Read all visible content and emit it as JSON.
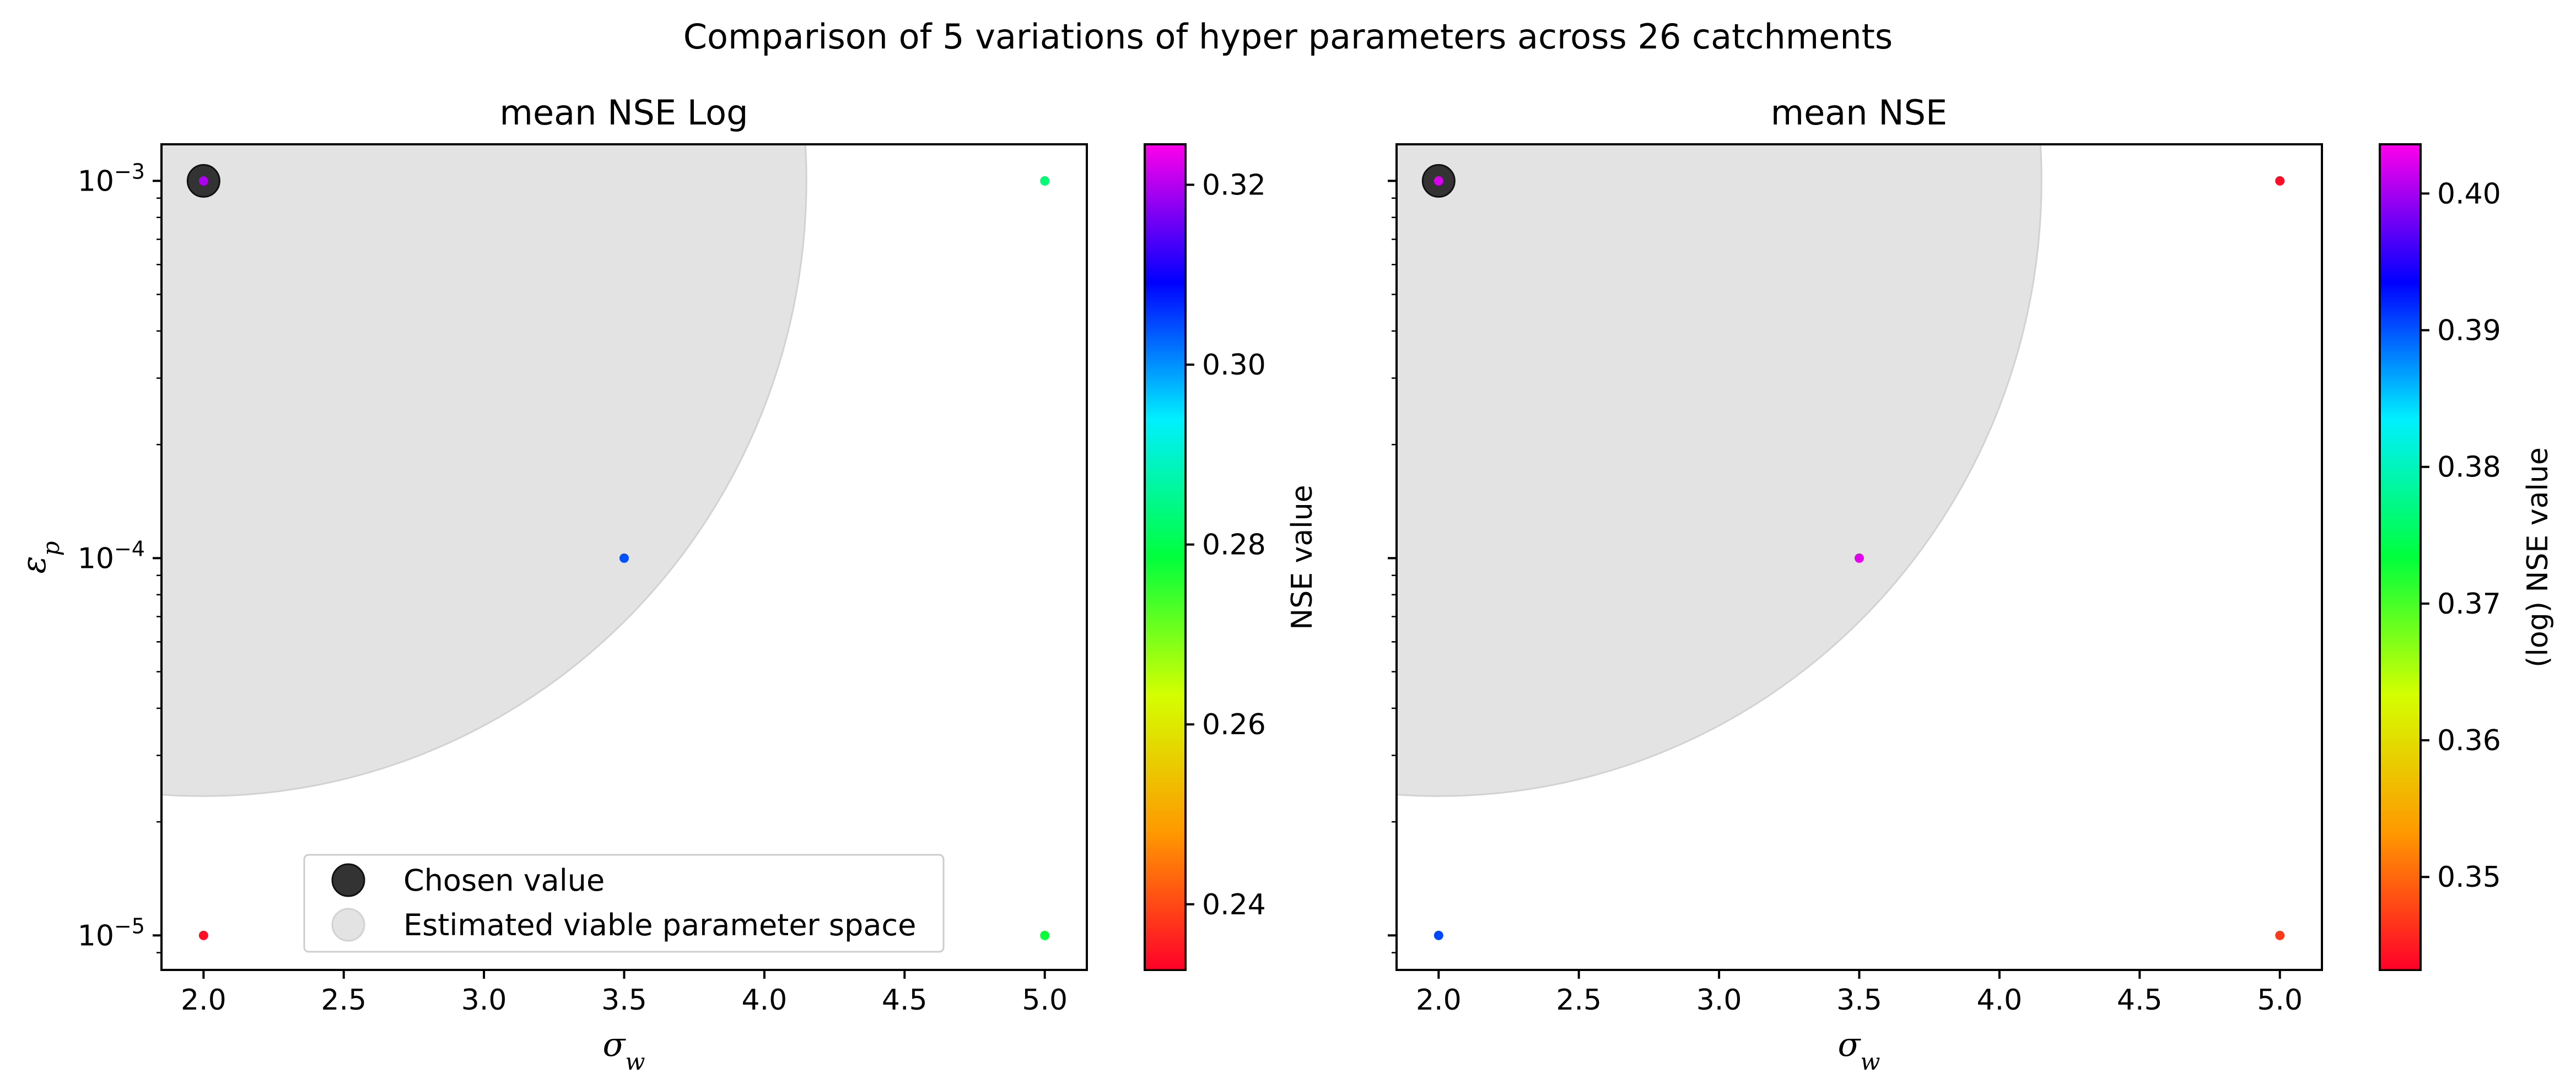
{
  "figure": {
    "suptitle": "Comparison of 5 variations of hyper parameters across 26 catchments"
  },
  "legend": {
    "chosen_label": "Chosen value",
    "viable_label": "Estimated viable parameter space",
    "chosen_color": "#333333",
    "viable_color": "#e3e3e3"
  },
  "chart_data": [
    {
      "type": "scatter",
      "title": "mean NSE Log",
      "xlabel_base": "σ",
      "xlabel_sub": "w",
      "ylabel_base": "ε",
      "ylabel_sub": "p",
      "yscale": "log",
      "xlim": [
        1.85,
        5.15
      ],
      "ylim": [
        8.1e-06,
        0.00125
      ],
      "xticks": [
        2.0,
        2.5,
        3.0,
        3.5,
        4.0,
        4.5,
        5.0
      ],
      "xtick_labels": [
        "2.0",
        "2.5",
        "3.0",
        "3.5",
        "4.0",
        "4.5",
        "5.0"
      ],
      "yticks": [
        1e-05,
        0.0001,
        0.001
      ],
      "ytick_base": "10",
      "ytick_exponents": [
        "−5",
        "−4",
        "−3"
      ],
      "grid": false,
      "legend_position": "lower center",
      "colormap": "gist_rainbow",
      "points": [
        {
          "x": 2.0,
          "y": 0.001,
          "value": 0.3195
        },
        {
          "x": 5.0,
          "y": 0.001,
          "value": 0.283
        },
        {
          "x": 3.5,
          "y": 0.0001,
          "value": 0.304
        },
        {
          "x": 2.0,
          "y": 1e-05,
          "value": 0.234
        },
        {
          "x": 5.0,
          "y": 1e-05,
          "value": 0.278
        }
      ],
      "chosen": {
        "x": 2.0,
        "y": 0.001
      },
      "viable_region": {
        "shape": "quarter-circle",
        "center": {
          "x": 2.0,
          "y": 0.001
        },
        "x_extent": 4.15,
        "y_extent": 2.34e-05
      },
      "colorbar": {
        "label": "NSE value",
        "vmin": 0.2327,
        "vmax": 0.3245,
        "ticks": [
          0.24,
          0.26,
          0.28,
          0.3,
          0.32
        ],
        "tick_labels": [
          "0.24",
          "0.26",
          "0.28",
          "0.30",
          "0.32"
        ]
      }
    },
    {
      "type": "scatter",
      "title": "mean NSE",
      "xlabel_base": "σ",
      "xlabel_sub": "w",
      "yscale": "log",
      "xlim": [
        1.85,
        5.15
      ],
      "ylim": [
        8.1e-06,
        0.00125
      ],
      "xticks": [
        2.0,
        2.5,
        3.0,
        3.5,
        4.0,
        4.5,
        5.0
      ],
      "xtick_labels": [
        "2.0",
        "2.5",
        "3.0",
        "3.5",
        "4.0",
        "4.5",
        "5.0"
      ],
      "yticks": [
        1e-05,
        0.0001,
        0.001
      ],
      "show_ytick_labels": false,
      "grid": false,
      "colormap": "gist_rainbow",
      "points": [
        {
          "x": 2.0,
          "y": 0.001,
          "value": 0.402
        },
        {
          "x": 5.0,
          "y": 0.001,
          "value": 0.344
        },
        {
          "x": 3.5,
          "y": 0.0001,
          "value": 0.4025
        },
        {
          "x": 2.0,
          "y": 1e-05,
          "value": 0.3905
        },
        {
          "x": 5.0,
          "y": 1e-05,
          "value": 0.347
        }
      ],
      "chosen": {
        "x": 2.0,
        "y": 0.001
      },
      "viable_region": {
        "shape": "quarter-circle",
        "center": {
          "x": 2.0,
          "y": 0.001
        },
        "x_extent": 4.15,
        "y_extent": 2.34e-05
      },
      "colorbar": {
        "label": "(log) NSE value",
        "vmin": 0.3432,
        "vmax": 0.4036,
        "ticks": [
          0.35,
          0.36,
          0.37,
          0.38,
          0.39,
          0.4
        ],
        "tick_labels": [
          "0.35",
          "0.36",
          "0.37",
          "0.38",
          "0.39",
          "0.40"
        ]
      }
    }
  ]
}
